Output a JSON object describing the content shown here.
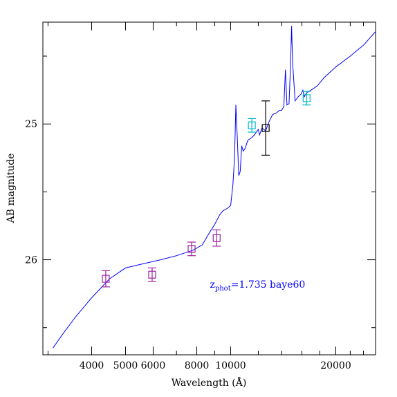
{
  "chart_data": {
    "type": "scatter",
    "title": "",
    "xlabel": "Wavelength (Å)",
    "ylabel": "AB magnitude",
    "x_scale": "log",
    "y_inverted": true,
    "xlim": [
      2900,
      26000
    ],
    "ylim": [
      26.7,
      24.25
    ],
    "x_ticks": [
      4000,
      5000,
      6000,
      8000,
      10000,
      20000
    ],
    "x_tick_labels": [
      "4000",
      "5000",
      "6000",
      "8000",
      "10000",
      "20000"
    ],
    "y_ticks": [
      25,
      26
    ],
    "y_tick_labels": [
      "25",
      "26"
    ],
    "grid": false,
    "annotation": {
      "text_main": "z",
      "text_sub": "phot",
      "text_rest": "=1.735 baye60",
      "color": "#0000ff",
      "x": 10000,
      "y": 26.18
    },
    "series": [
      {
        "kind": "line",
        "color": "#0000ff",
        "points": [
          [
            3100,
            26.65
          ],
          [
            3300,
            26.55
          ],
          [
            3600,
            26.42
          ],
          [
            4000,
            26.28
          ],
          [
            4500,
            26.14
          ],
          [
            5000,
            26.06
          ],
          [
            5600,
            26.03
          ],
          [
            6300,
            26.0
          ],
          [
            7000,
            25.97
          ],
          [
            7800,
            25.93
          ],
          [
            8300,
            25.89
          ],
          [
            8700,
            25.8
          ],
          [
            9000,
            25.74
          ],
          [
            9300,
            25.67
          ],
          [
            9500,
            25.64
          ],
          [
            9800,
            25.62
          ],
          [
            10000,
            25.6
          ],
          [
            10150,
            25.45
          ],
          [
            10260,
            25.25
          ],
          [
            10350,
            24.86
          ],
          [
            10450,
            25.1
          ],
          [
            10550,
            25.38
          ],
          [
            10650,
            25.35
          ],
          [
            10760,
            25.16
          ],
          [
            10860,
            25.2
          ],
          [
            11000,
            25.18
          ],
          [
            11200,
            25.12
          ],
          [
            11500,
            25.1
          ],
          [
            11700,
            25.08
          ],
          [
            12000,
            25.04
          ],
          [
            12100,
            25.08
          ],
          [
            12300,
            25.03
          ],
          [
            12600,
            25.05
          ],
          [
            12900,
            24.98
          ],
          [
            13200,
            24.93
          ],
          [
            13500,
            24.92
          ],
          [
            13800,
            24.9
          ],
          [
            14000,
            24.9
          ],
          [
            14200,
            24.87
          ],
          [
            14350,
            24.6
          ],
          [
            14500,
            24.86
          ],
          [
            14700,
            24.85
          ],
          [
            14850,
            24.55
          ],
          [
            14950,
            24.28
          ],
          [
            15050,
            24.55
          ],
          [
            15300,
            24.83
          ],
          [
            15600,
            24.8
          ],
          [
            15900,
            24.78
          ],
          [
            16100,
            24.75
          ],
          [
            16250,
            24.8
          ],
          [
            16500,
            24.77
          ],
          [
            17000,
            24.75
          ],
          [
            17700,
            24.72
          ],
          [
            18500,
            24.66
          ],
          [
            20000,
            24.58
          ],
          [
            22000,
            24.5
          ],
          [
            24000,
            24.42
          ],
          [
            26000,
            24.32
          ]
        ]
      },
      {
        "kind": "points",
        "color": "#a020a0",
        "points": [
          {
            "x": 4390,
            "y": 26.14,
            "err": 0.06
          },
          {
            "x": 5960,
            "y": 26.11,
            "err": 0.05
          },
          {
            "x": 7730,
            "y": 25.92,
            "err": 0.05
          },
          {
            "x": 9120,
            "y": 25.84,
            "err": 0.06
          }
        ]
      },
      {
        "kind": "points",
        "color": "#00b8c8",
        "points": [
          {
            "x": 11500,
            "y": 25.01,
            "err": 0.05
          },
          {
            "x": 16500,
            "y": 24.81,
            "err": 0.05
          }
        ]
      },
      {
        "kind": "points",
        "color": "#000000",
        "points": [
          {
            "x": 12600,
            "y": 25.03,
            "err": 0.2
          }
        ]
      }
    ]
  }
}
